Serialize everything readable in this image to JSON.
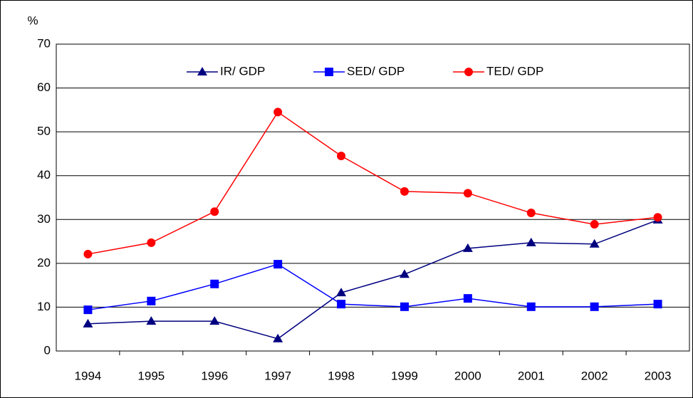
{
  "chart_data": {
    "type": "line",
    "y_label": "%",
    "categories": [
      "1994",
      "1995",
      "1996",
      "1997",
      "1998",
      "1999",
      "2000",
      "2001",
      "2002",
      "2003"
    ],
    "series": [
      {
        "name": "IR/ GDP",
        "color": "#000080",
        "marker": "triangle",
        "values": [
          6.2,
          6.8,
          6.8,
          2.8,
          13.3,
          17.5,
          23.4,
          24.7,
          24.4,
          29.9
        ]
      },
      {
        "name": "SED/ GDP",
        "color": "#0000ff",
        "marker": "square",
        "values": [
          9.4,
          11.4,
          15.3,
          19.8,
          10.7,
          10.1,
          12.0,
          10.1,
          10.1,
          10.7
        ]
      },
      {
        "name": "TED/ GDP",
        "color": "#ff0000",
        "marker": "circle",
        "values": [
          22.1,
          24.7,
          31.8,
          54.5,
          44.5,
          36.4,
          36.0,
          31.5,
          28.9,
          30.5
        ]
      }
    ],
    "ylim": [
      0,
      70
    ],
    "yticks": [
      0,
      10,
      20,
      30,
      40,
      50,
      60,
      70
    ],
    "grid": true,
    "legend": "top"
  }
}
